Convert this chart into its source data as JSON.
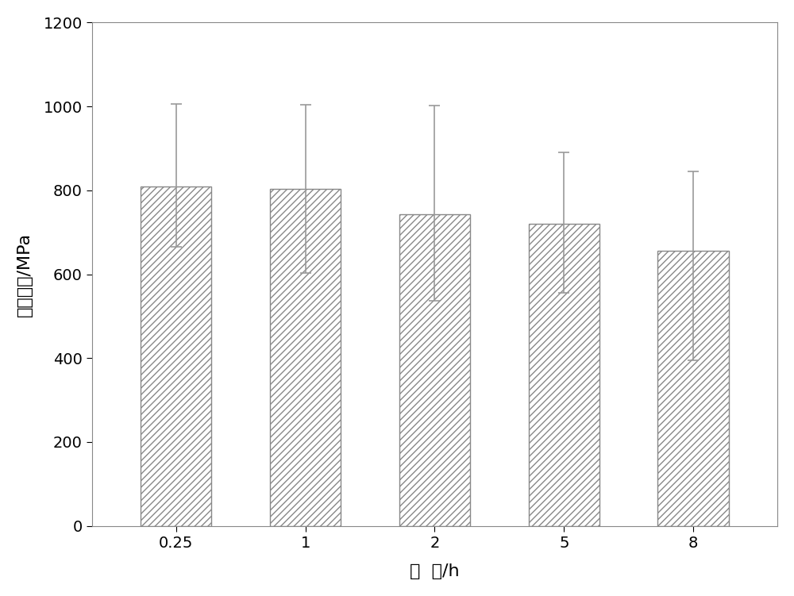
{
  "categories": [
    "0.25",
    "1",
    "2",
    "5",
    "8"
  ],
  "values": [
    810,
    803,
    742,
    720,
    655
  ],
  "errors_upper": [
    195,
    200,
    260,
    170,
    190
  ],
  "errors_lower": [
    145,
    200,
    205,
    165,
    260
  ],
  "xlabel": "时  间/h",
  "ylabel": "拉伸强度/MPa",
  "ylim": [
    0,
    1200
  ],
  "yticks": [
    0,
    200,
    400,
    600,
    800,
    1000,
    1200
  ],
  "bar_facecolor": "#ffffff",
  "bar_edgecolor": "#888888",
  "hatch": "////",
  "hatch_color": "#b0b0b0",
  "error_color": "#999999",
  "bar_width": 0.55,
  "xlabel_fontsize": 16,
  "ylabel_fontsize": 16,
  "tick_fontsize": 14,
  "background_color": "#ffffff",
  "spine_color": "#888888"
}
